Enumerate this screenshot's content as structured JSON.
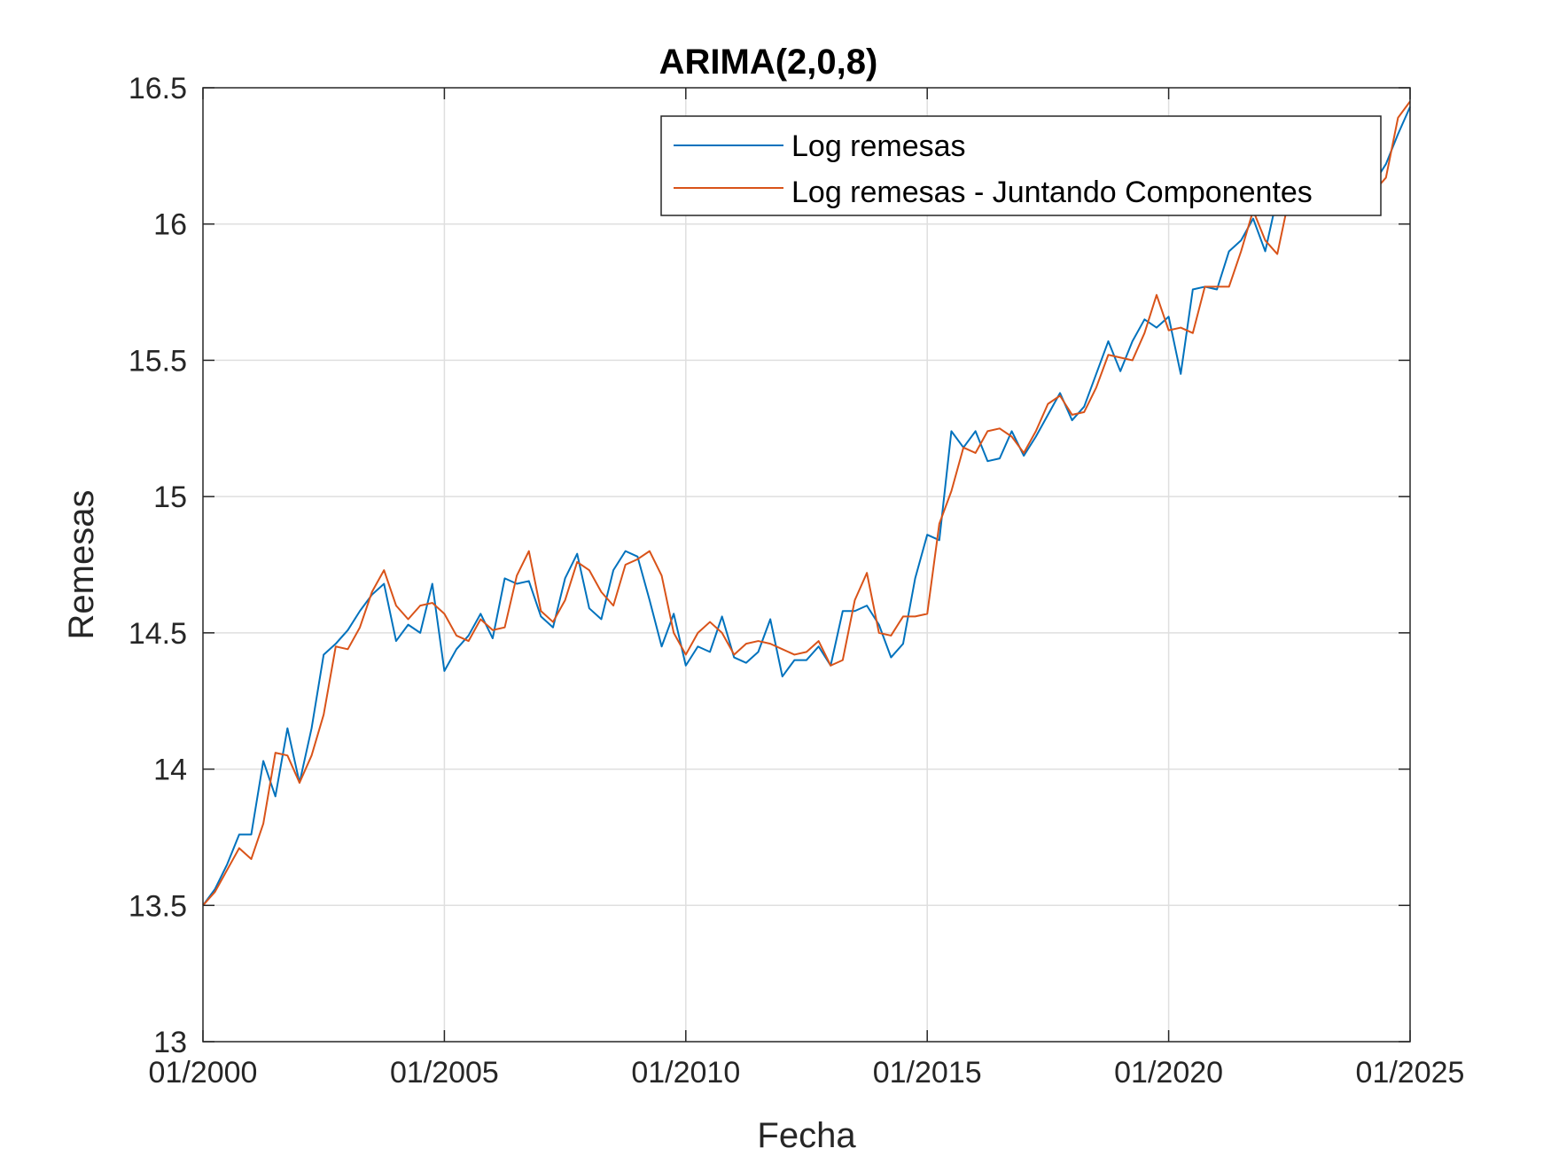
{
  "chart_data": {
    "type": "line",
    "title": "ARIMA(2,0,8)",
    "xlabel": "Fecha",
    "ylabel": "Remesas",
    "xlim": [
      "01/2000",
      "01/2025"
    ],
    "ylim": [
      13,
      16.5
    ],
    "x_tick_labels": [
      "01/2000",
      "01/2005",
      "01/2010",
      "01/2015",
      "01/2020",
      "01/2025"
    ],
    "y_tick_labels": [
      "13",
      "13.5",
      "14",
      "14.5",
      "15",
      "15.5",
      "16",
      "16.5"
    ],
    "y_ticks": [
      13,
      13.5,
      14,
      14.5,
      15,
      15.5,
      16,
      16.5
    ],
    "grid": true,
    "legend_position": "top-right",
    "x_frequency": "quarterly",
    "x": [
      "2000 Q1",
      "2000 Q2",
      "2000 Q3",
      "2000 Q4",
      "2001 Q1",
      "2001 Q2",
      "2001 Q3",
      "2001 Q4",
      "2002 Q1",
      "2002 Q2",
      "2002 Q3",
      "2002 Q4",
      "2003 Q1",
      "2003 Q2",
      "2003 Q3",
      "2003 Q4",
      "2004 Q1",
      "2004 Q2",
      "2004 Q3",
      "2004 Q4",
      "2005 Q1",
      "2005 Q2",
      "2005 Q3",
      "2005 Q4",
      "2006 Q1",
      "2006 Q2",
      "2006 Q3",
      "2006 Q4",
      "2007 Q1",
      "2007 Q2",
      "2007 Q3",
      "2007 Q4",
      "2008 Q1",
      "2008 Q2",
      "2008 Q3",
      "2008 Q4",
      "2009 Q1",
      "2009 Q2",
      "2009 Q3",
      "2009 Q4",
      "2010 Q1",
      "2010 Q2",
      "2010 Q3",
      "2010 Q4",
      "2011 Q1",
      "2011 Q2",
      "2011 Q3",
      "2011 Q4",
      "2012 Q1",
      "2012 Q2",
      "2012 Q3",
      "2012 Q4",
      "2013 Q1",
      "2013 Q2",
      "2013 Q3",
      "2013 Q4",
      "2014 Q1",
      "2014 Q2",
      "2014 Q3",
      "2014 Q4",
      "2015 Q1",
      "2015 Q2",
      "2015 Q3",
      "2015 Q4",
      "2016 Q1",
      "2016 Q2",
      "2016 Q3",
      "2016 Q4",
      "2017 Q1",
      "2017 Q2",
      "2017 Q3",
      "2017 Q4",
      "2018 Q1",
      "2018 Q2",
      "2018 Q3",
      "2018 Q4",
      "2019 Q1",
      "2019 Q2",
      "2019 Q3",
      "2019 Q4",
      "2020 Q1",
      "2020 Q2",
      "2020 Q3",
      "2020 Q4",
      "2021 Q1",
      "2021 Q2",
      "2021 Q3",
      "2021 Q4",
      "2022 Q1",
      "2022 Q2",
      "2022 Q3",
      "2022 Q4",
      "2023 Q1",
      "2023 Q2",
      "2023 Q3",
      "2023 Q4",
      "2024 Q1",
      "2024 Q2",
      "2024 Q3",
      "2024 Q4",
      "2025 Q1"
    ],
    "series": [
      {
        "name": "Log remesas",
        "color": "#0072BD",
        "values": [
          13.5,
          13.56,
          13.65,
          13.76,
          13.76,
          14.03,
          13.9,
          14.15,
          13.95,
          14.15,
          14.42,
          14.46,
          14.51,
          14.58,
          14.64,
          14.68,
          14.47,
          14.53,
          14.5,
          14.68,
          14.36,
          14.44,
          14.49,
          14.57,
          14.48,
          14.7,
          14.68,
          14.69,
          14.56,
          14.52,
          14.7,
          14.79,
          14.59,
          14.55,
          14.73,
          14.8,
          14.78,
          14.62,
          14.45,
          14.57,
          14.38,
          14.45,
          14.43,
          14.56,
          14.41,
          14.39,
          14.43,
          14.55,
          14.34,
          14.4,
          14.4,
          14.45,
          14.38,
          14.58,
          14.58,
          14.6,
          14.53,
          14.41,
          14.46,
          14.7,
          14.86,
          14.84,
          15.24,
          15.18,
          15.24,
          15.13,
          15.14,
          15.24,
          15.15,
          15.22,
          15.3,
          15.38,
          15.28,
          15.33,
          15.45,
          15.57,
          15.46,
          15.57,
          15.65,
          15.62,
          15.66,
          15.45,
          15.76,
          15.77,
          15.76,
          15.9,
          15.94,
          16.02,
          15.9,
          16.1,
          16.12,
          16.1,
          16.2,
          16.2,
          16.22,
          16.15,
          16.05,
          16.15,
          16.22,
          16.33,
          16.43
        ]
      },
      {
        "name": "Log remesas - Juntando Componentes",
        "color": "#D95319",
        "values": [
          13.5,
          13.55,
          13.63,
          13.71,
          13.67,
          13.8,
          14.06,
          14.05,
          13.95,
          14.05,
          14.2,
          14.45,
          14.44,
          14.52,
          14.65,
          14.73,
          14.6,
          14.55,
          14.6,
          14.61,
          14.57,
          14.49,
          14.47,
          14.55,
          14.51,
          14.52,
          14.71,
          14.8,
          14.58,
          14.54,
          14.62,
          14.76,
          14.73,
          14.65,
          14.6,
          14.75,
          14.77,
          14.8,
          14.71,
          14.5,
          14.42,
          14.5,
          14.54,
          14.5,
          14.42,
          14.46,
          14.47,
          14.46,
          14.44,
          14.42,
          14.43,
          14.47,
          14.38,
          14.4,
          14.62,
          14.72,
          14.5,
          14.49,
          14.56,
          14.56,
          14.57,
          14.9,
          15.02,
          15.18,
          15.16,
          15.24,
          15.25,
          15.22,
          15.16,
          15.24,
          15.34,
          15.37,
          15.3,
          15.31,
          15.4,
          15.52,
          15.51,
          15.5,
          15.6,
          15.74,
          15.61,
          15.62,
          15.6,
          15.77,
          15.77,
          15.77,
          15.9,
          16.05,
          15.94,
          15.89,
          16.1,
          16.12,
          16.12,
          16.18,
          16.2,
          16.18,
          16.08,
          16.12,
          16.17,
          16.39,
          16.45
        ]
      }
    ]
  }
}
